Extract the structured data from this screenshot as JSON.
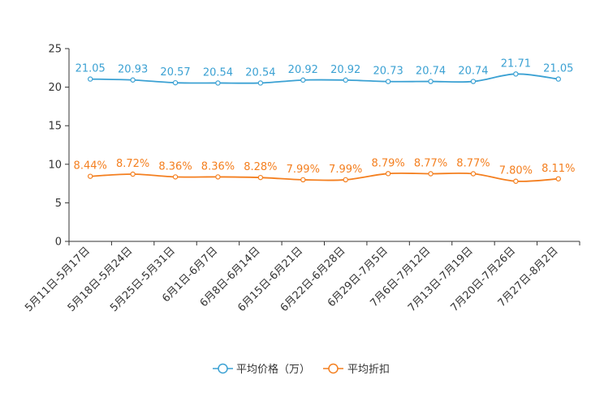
{
  "colors": {
    "price": "#3ba1d3",
    "discount": "#f47f1f",
    "axis": "#333333"
  },
  "legend": {
    "price_label": "平均价格（万）",
    "discount_label": "平均折扣"
  },
  "chart_data": {
    "type": "line",
    "title": "",
    "xlabel": "",
    "ylabel": "",
    "ylim": [
      0,
      25
    ],
    "yticks": [
      "0",
      "5",
      "10",
      "15",
      "20",
      "25"
    ],
    "legend_position": "bottom-center",
    "categories": [
      "5月11日-5月17日",
      "5月18日-5月24日",
      "5月25日-5月31日",
      "6月1日-6月7日",
      "6月8日-6月14日",
      "6月15日-6月21日",
      "6月22日-6月28日",
      "6月29日-7月5日",
      "7月6日-7月12日",
      "7月13日-7月19日",
      "7月20日-7月26日",
      "7月27日-8月2日"
    ],
    "series": [
      {
        "name": "平均价格（万）",
        "values": [
          21.05,
          20.93,
          20.57,
          20.54,
          20.54,
          20.92,
          20.92,
          20.73,
          20.74,
          20.74,
          21.71,
          21.05
        ],
        "labels": [
          "21.05",
          "20.93",
          "20.57",
          "20.54",
          "20.54",
          "20.92",
          "20.92",
          "20.73",
          "20.74",
          "20.74",
          "21.71",
          "21.05"
        ]
      },
      {
        "name": "平均折扣",
        "values": [
          8.44,
          8.72,
          8.36,
          8.36,
          8.28,
          7.99,
          7.99,
          8.79,
          8.77,
          8.77,
          7.8,
          8.11
        ],
        "labels": [
          "8.44%",
          "8.72%",
          "8.36%",
          "8.36%",
          "8.28%",
          "7.99%",
          "7.99%",
          "8.79%",
          "8.77%",
          "8.77%",
          "7.80%",
          "8.11%"
        ]
      }
    ]
  }
}
